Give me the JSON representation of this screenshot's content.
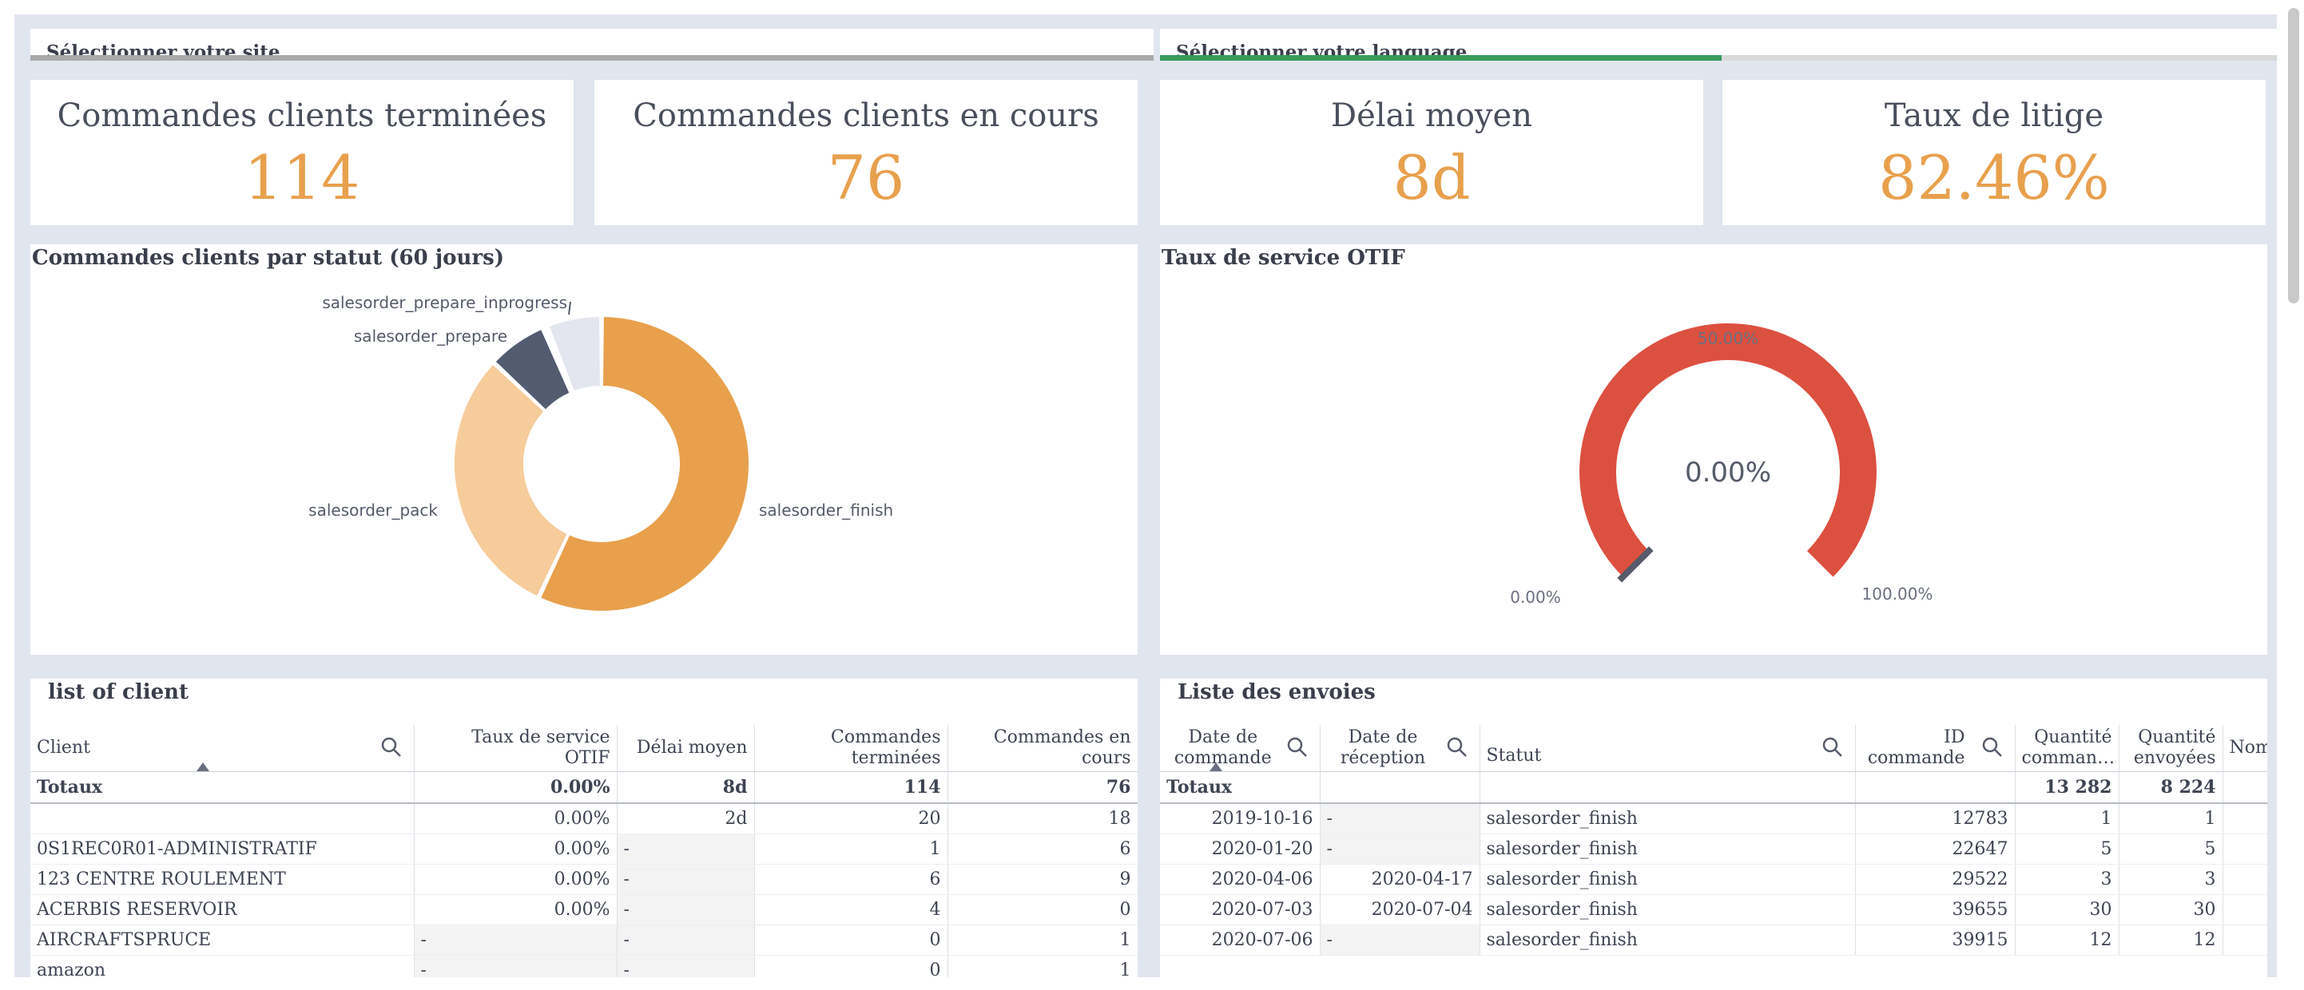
{
  "selectors": {
    "site_label": "Sélectionner votre site",
    "language_label": "Sélectionner votre language"
  },
  "kpis": [
    {
      "label": "Commandes clients terminées",
      "value": "114"
    },
    {
      "label": "Commandes clients en cours",
      "value": "76"
    },
    {
      "label": "Délai moyen",
      "value": "8d"
    },
    {
      "label": "Taux de litige",
      "value": "82.46%"
    }
  ],
  "colors": {
    "accent_orange": "#e8a04d",
    "language_bar_green": "#3a9a5b",
    "gauge_red": "#dc5040"
  },
  "donut_panel": {
    "title": "Commandes clients par statut (60 jours)"
  },
  "gauge_panel": {
    "title": "Taux de service OTIF"
  },
  "chart_data": [
    {
      "type": "pie",
      "title": "Commandes clients par statut (60 jours)",
      "categories": [
        "salesorder_finish",
        "salesorder_pack",
        "salesorder_prepare",
        "salesorder_prepare_inprogress",
        ""
      ],
      "values": [
        57,
        30,
        6.5,
        0.5,
        6
      ],
      "colors": [
        "#e8a04d",
        "#f6cc9b",
        "#525b70",
        "#525b70",
        "#e3e6ee"
      ]
    },
    {
      "type": "gauge",
      "title": "Taux de service OTIF",
      "value": 0,
      "value_label": "0.00%",
      "min_label": "0.00%",
      "mid_label": "50.00%",
      "max_label": "100.00%"
    }
  ],
  "client_table": {
    "title": "list of client",
    "headers": [
      "Client",
      "Taux de service OTIF",
      "Délai moyen",
      "Commandes terminées",
      "Commandes en cours"
    ],
    "totals": [
      "Totaux",
      "0.00%",
      "8d",
      "114",
      "76"
    ],
    "rows": [
      [
        "",
        "0.00%",
        "2d",
        "20",
        "18"
      ],
      [
        "0S1REC0R01-ADMINISTRATIF",
        "0.00%",
        "-",
        "1",
        "6"
      ],
      [
        "123 CENTRE ROULEMENT",
        "0.00%",
        "-",
        "6",
        "9"
      ],
      [
        "ACERBIS RESERVOIR",
        "0.00%",
        "-",
        "4",
        "0"
      ],
      [
        "AIRCRAFTSPRUCE",
        "-",
        "-",
        "0",
        "1"
      ],
      [
        "amazon",
        "-",
        "-",
        "0",
        "1"
      ]
    ]
  },
  "shipments_table": {
    "title": "Liste des envoies",
    "headers": [
      "Date de commande",
      "Date de réception",
      "Statut",
      "ID commande",
      "Quantité comman…",
      "Quantité envoyées",
      "Nom de c"
    ],
    "totals": [
      "Totaux",
      "",
      "",
      "",
      "13 282",
      "8 224",
      ""
    ],
    "rows": [
      [
        "2019-10-16",
        "-",
        "salesorder_finish",
        "12783",
        "1",
        "1",
        ""
      ],
      [
        "2020-01-20",
        "-",
        "salesorder_finish",
        "22647",
        "5",
        "5",
        ""
      ],
      [
        "2020-04-06",
        "2020-04-17",
        "salesorder_finish",
        "29522",
        "3",
        "3",
        ""
      ],
      [
        "2020-07-03",
        "2020-07-04",
        "salesorder_finish",
        "39655",
        "30",
        "30",
        ""
      ],
      [
        "2020-07-06",
        "-",
        "salesorder_finish",
        "39915",
        "12",
        "12",
        ""
      ]
    ]
  }
}
